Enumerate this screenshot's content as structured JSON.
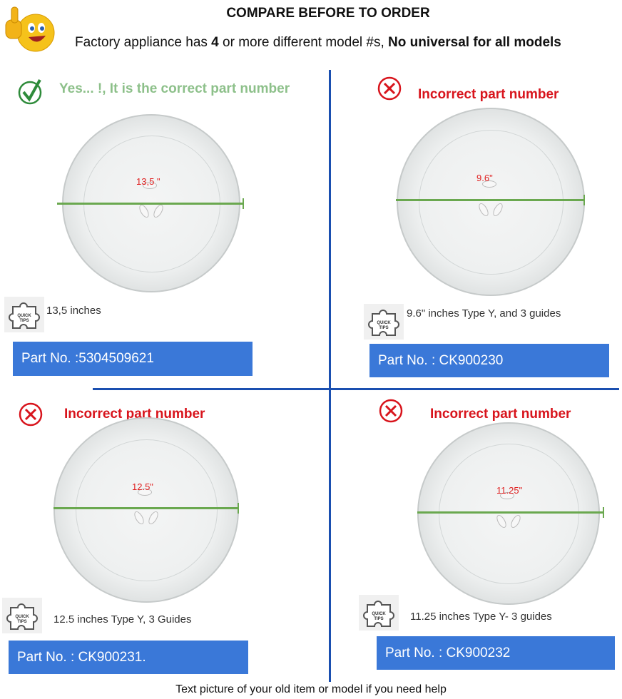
{
  "header": {
    "title": "COMPARE BEFORE TO ORDER",
    "subtitle_pre": "Factory appliance has ",
    "subtitle_bold1": "4",
    "subtitle_mid": " or more different model #s, ",
    "subtitle_bold2": "No universal for all models"
  },
  "quadrants": [
    {
      "status": "correct",
      "icon": "check-circle-icon",
      "title": "Yes... !, It is the correct part number",
      "diameter_label": "13,5 \"",
      "tip": "13,5  inches",
      "part": "Part No. :5304509621"
    },
    {
      "status": "incorrect",
      "icon": "x-circle-icon",
      "title": "Incorrect part number",
      "diameter_label": "9.6\"",
      "tip": "9.6\" inches Type Y, and 3 guides",
      "part": "Part No. :  CK900230"
    },
    {
      "status": "incorrect",
      "icon": "x-circle-icon",
      "title": "Incorrect part number",
      "diameter_label": "12.5\"",
      "tip": "12.5 inches Type Y, 3 Guides",
      "part": "Part No. :  CK900231."
    },
    {
      "status": "incorrect",
      "icon": "x-circle-icon",
      "title": "Incorrect part number",
      "diameter_label": "11.25\"",
      "tip": "11.25 inches Type Y- 3 guides",
      "part": "Part No. :  CK900232"
    }
  ],
  "tips_icon_text": "QUICK TIPS",
  "footer": "Text picture of your old item or model if you need help",
  "colors": {
    "correct": "#8dc08a",
    "incorrect": "#d8141c",
    "part_box": "#3a78d8",
    "divider": "#1a4fb0",
    "measure_line": "#6aa84f"
  }
}
